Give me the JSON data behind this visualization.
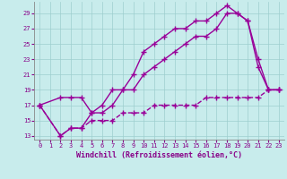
{
  "xlabel": "Windchill (Refroidissement éolien,°C)",
  "bg_color": "#c8ecec",
  "grid_color": "#9ecece",
  "line_color": "#990099",
  "xlim": [
    -0.5,
    23.5
  ],
  "ylim": [
    12.5,
    30.5
  ],
  "xticks": [
    0,
    1,
    2,
    3,
    4,
    5,
    6,
    7,
    8,
    9,
    10,
    11,
    12,
    13,
    14,
    15,
    16,
    17,
    18,
    19,
    20,
    21,
    22,
    23
  ],
  "yticks": [
    13,
    15,
    17,
    19,
    21,
    23,
    25,
    27,
    29
  ],
  "line1_x": [
    0,
    2,
    3,
    4,
    5,
    6,
    7,
    8,
    9,
    10,
    11,
    12,
    13,
    14,
    15,
    16,
    17,
    18,
    19,
    20,
    21,
    22,
    23
  ],
  "line1_y": [
    17,
    18,
    18,
    18,
    16,
    17,
    19,
    19,
    21,
    24,
    25,
    26,
    27,
    27,
    28,
    28,
    29,
    30,
    29,
    28,
    22,
    19,
    19
  ],
  "line2_x": [
    0,
    2,
    3,
    4,
    5,
    6,
    7,
    8,
    9,
    10,
    11,
    12,
    13,
    14,
    15,
    16,
    17,
    18,
    19,
    20,
    21,
    22,
    23
  ],
  "line2_y": [
    17,
    13,
    14,
    14,
    16,
    16,
    17,
    19,
    19,
    21,
    22,
    23,
    24,
    25,
    26,
    26,
    27,
    29,
    29,
    28,
    23,
    19,
    19
  ],
  "line3_x": [
    0,
    2,
    3,
    4,
    5,
    6,
    7,
    8,
    9,
    10,
    11,
    12,
    13,
    14,
    15,
    16,
    17,
    18,
    19,
    20,
    21,
    22,
    23
  ],
  "line3_y": [
    17,
    13,
    14,
    14,
    15,
    15,
    15,
    16,
    16,
    16,
    17,
    17,
    17,
    17,
    17,
    18,
    18,
    18,
    18,
    18,
    18,
    19,
    19
  ],
  "marker": "+",
  "markersize": 4,
  "linewidth": 1.0,
  "tick_fontsize": 5.0,
  "label_fontsize": 6.0,
  "tick_color": "#880088",
  "label_color": "#880088",
  "spine_color": "#888888"
}
